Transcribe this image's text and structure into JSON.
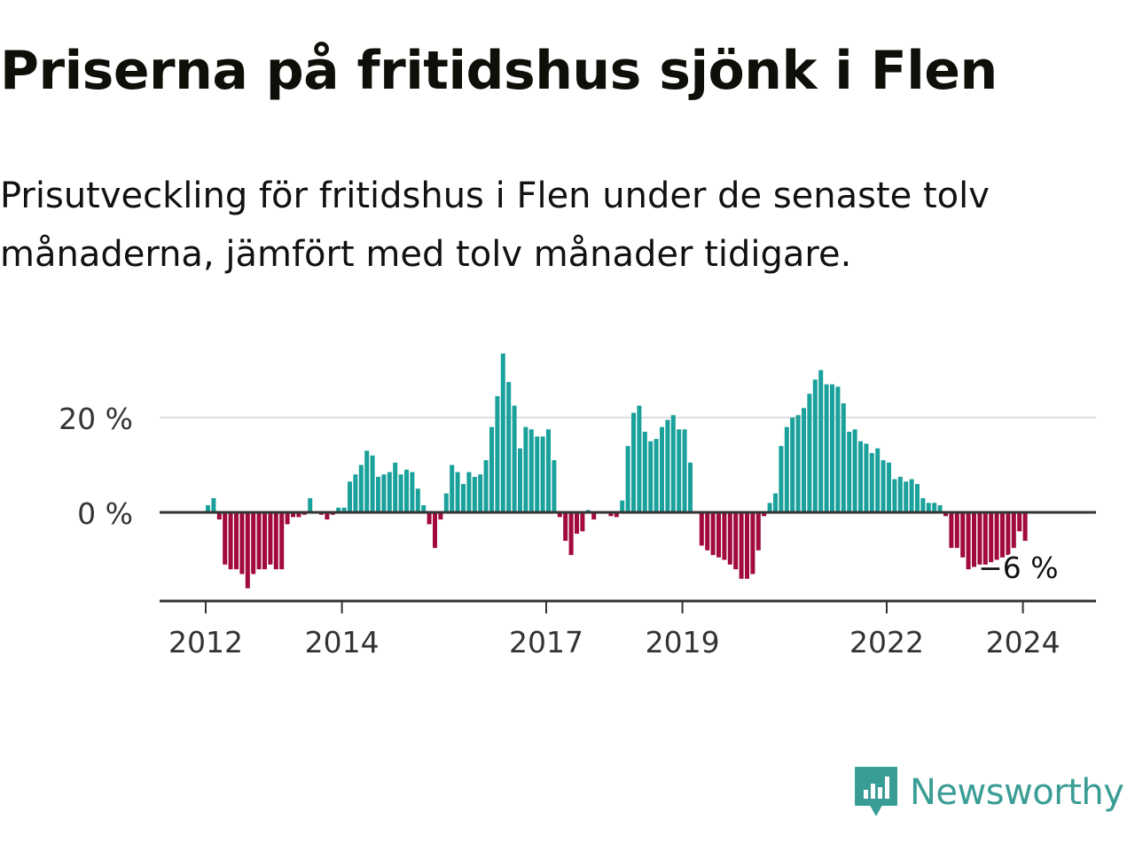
{
  "title": "Priserna på fritidshus sjönk i Flen",
  "subtitle": "Prisutveckling för fritidshus i Flen under de senaste tolv månaderna, jämfört med tolv månader tidigare.",
  "brand": {
    "name": "Newsworthy",
    "icon": "newsworthy-logo-icon"
  },
  "colors": {
    "positive": "#1aa19b",
    "negative": "#a1093f",
    "gridline": "#dddddd",
    "axis": "#333333",
    "brand": "#3a9d95"
  },
  "chart_data": {
    "type": "bar",
    "x_start": "2012-01",
    "x_step": "month",
    "ylim": [
      -18,
      35
    ],
    "yticks": [
      0,
      20
    ],
    "ytick_labels": [
      "0 %",
      "20 %"
    ],
    "xticks": [
      "2012",
      "2014",
      "2017",
      "2019",
      "2022",
      "2024"
    ],
    "last_label": "−6 %",
    "values": [
      1.5,
      3,
      -1.5,
      -11,
      -12,
      -12,
      -13,
      -16,
      -13,
      -12,
      -12,
      -11,
      -12,
      -12,
      -2.5,
      -1,
      -1,
      -0.5,
      3,
      0,
      -0.5,
      -1.5,
      -0.5,
      1,
      1,
      6.5,
      8,
      10,
      13,
      12,
      7.5,
      8,
      8.5,
      10.5,
      8,
      9,
      8.5,
      5,
      1.5,
      -2.5,
      -7.5,
      -1.5,
      4,
      10,
      8.5,
      6,
      8.5,
      7.5,
      8,
      11,
      18,
      24.5,
      33.5,
      27.5,
      22.5,
      13.5,
      18,
      17.5,
      16,
      16,
      17.5,
      11,
      -1,
      -6,
      -9,
      -4.5,
      -4,
      0.5,
      -1.5,
      0.3,
      0,
      -0.8,
      -1,
      2.5,
      14,
      21,
      22.5,
      17,
      15,
      15.5,
      18,
      19.5,
      20.5,
      17.5,
      17.5,
      10.5,
      0,
      -7,
      -8,
      -9,
      -9.5,
      -10,
      -11,
      -12,
      -14,
      -14,
      -13,
      -8,
      -0.8,
      2,
      4,
      14,
      18,
      20,
      20.5,
      22,
      25,
      28,
      30,
      27,
      27,
      26.5,
      23,
      17,
      17.5,
      15,
      14.5,
      12.5,
      13.5,
      11,
      10.5,
      7,
      7.5,
      6.5,
      7,
      6,
      3,
      2,
      2,
      1.5,
      -0.8,
      -7.5,
      -7.5,
      -9.5,
      -12,
      -11.5,
      -11,
      -11,
      -10.5,
      -10,
      -9.5,
      -9,
      -7.5,
      -4,
      -6
    ]
  }
}
